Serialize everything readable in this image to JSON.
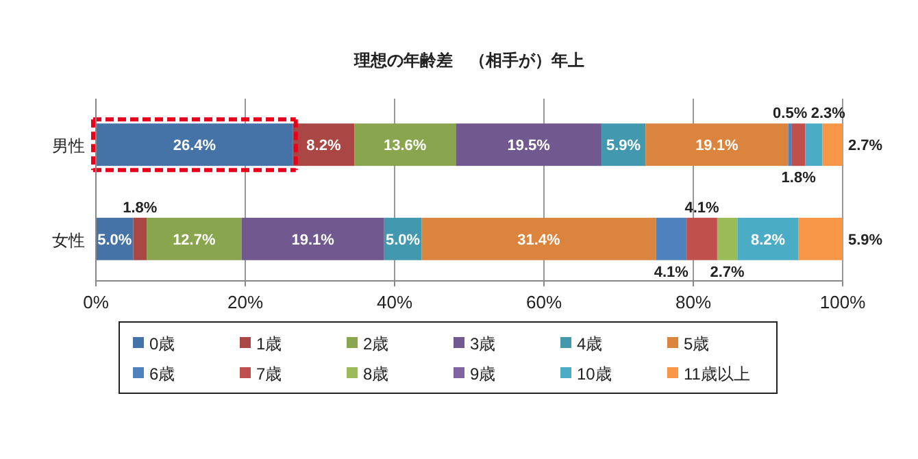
{
  "chart_data": {
    "type": "bar",
    "orientation": "horizontal",
    "stacked": true,
    "title": "理想の年齢差　（相手が）年上",
    "categories": [
      "男性",
      "女性"
    ],
    "xlim": [
      0,
      100
    ],
    "xticks": [
      {
        "value": 0,
        "label": "0%"
      },
      {
        "value": 20,
        "label": "20%"
      },
      {
        "value": 40,
        "label": "40%"
      },
      {
        "value": 60,
        "label": "60%"
      },
      {
        "value": 80,
        "label": "80%"
      },
      {
        "value": 100,
        "label": "100%"
      }
    ],
    "grid": "x",
    "legend": "bottom",
    "series": [
      {
        "name": "0歳",
        "color": "#4572a7",
        "values": [
          26.4,
          5.0
        ],
        "value_labels": [
          "26.4%",
          "5.0%"
        ]
      },
      {
        "name": "1歳",
        "color": "#aa4643",
        "values": [
          8.2,
          1.8
        ],
        "value_labels": [
          "8.2%",
          "1.8%"
        ]
      },
      {
        "name": "2歳",
        "color": "#89a54e",
        "values": [
          13.6,
          12.7
        ],
        "value_labels": [
          "13.6%",
          "12.7%"
        ]
      },
      {
        "name": "3歳",
        "color": "#71588f",
        "values": [
          19.5,
          19.1
        ],
        "value_labels": [
          "19.5%",
          "19.1%"
        ]
      },
      {
        "name": "4歳",
        "color": "#4198af",
        "values": [
          5.9,
          5.0
        ],
        "value_labels": [
          "5.9%",
          "5.0%"
        ]
      },
      {
        "name": "5歳",
        "color": "#db843d",
        "values": [
          19.1,
          31.4
        ],
        "value_labels": [
          "19.1%",
          "31.4%"
        ]
      },
      {
        "name": "6歳",
        "color": "#4f81bd",
        "values": [
          0.5,
          4.1
        ],
        "value_labels": [
          "0.5%",
          "4.1%"
        ]
      },
      {
        "name": "7歳",
        "color": "#c0504d",
        "values": [
          1.8,
          4.1
        ],
        "value_labels": [
          "1.8%",
          "4.1%"
        ]
      },
      {
        "name": "8歳",
        "color": "#9bbb59",
        "values": [
          null,
          2.7
        ],
        "value_labels": [
          null,
          "2.7%"
        ]
      },
      {
        "name": "9歳",
        "color": "#8064a2",
        "values": [
          null,
          null
        ],
        "value_labels": [
          null,
          null
        ]
      },
      {
        "name": "10歳",
        "color": "#4bacc6",
        "values": [
          2.3,
          8.2
        ],
        "value_labels": [
          "2.3%",
          "8.2%"
        ]
      },
      {
        "name": "11歳以上",
        "color": "#f79646",
        "values": [
          2.7,
          5.9
        ],
        "value_labels": [
          "2.7%",
          "5.9%"
        ]
      }
    ]
  }
}
